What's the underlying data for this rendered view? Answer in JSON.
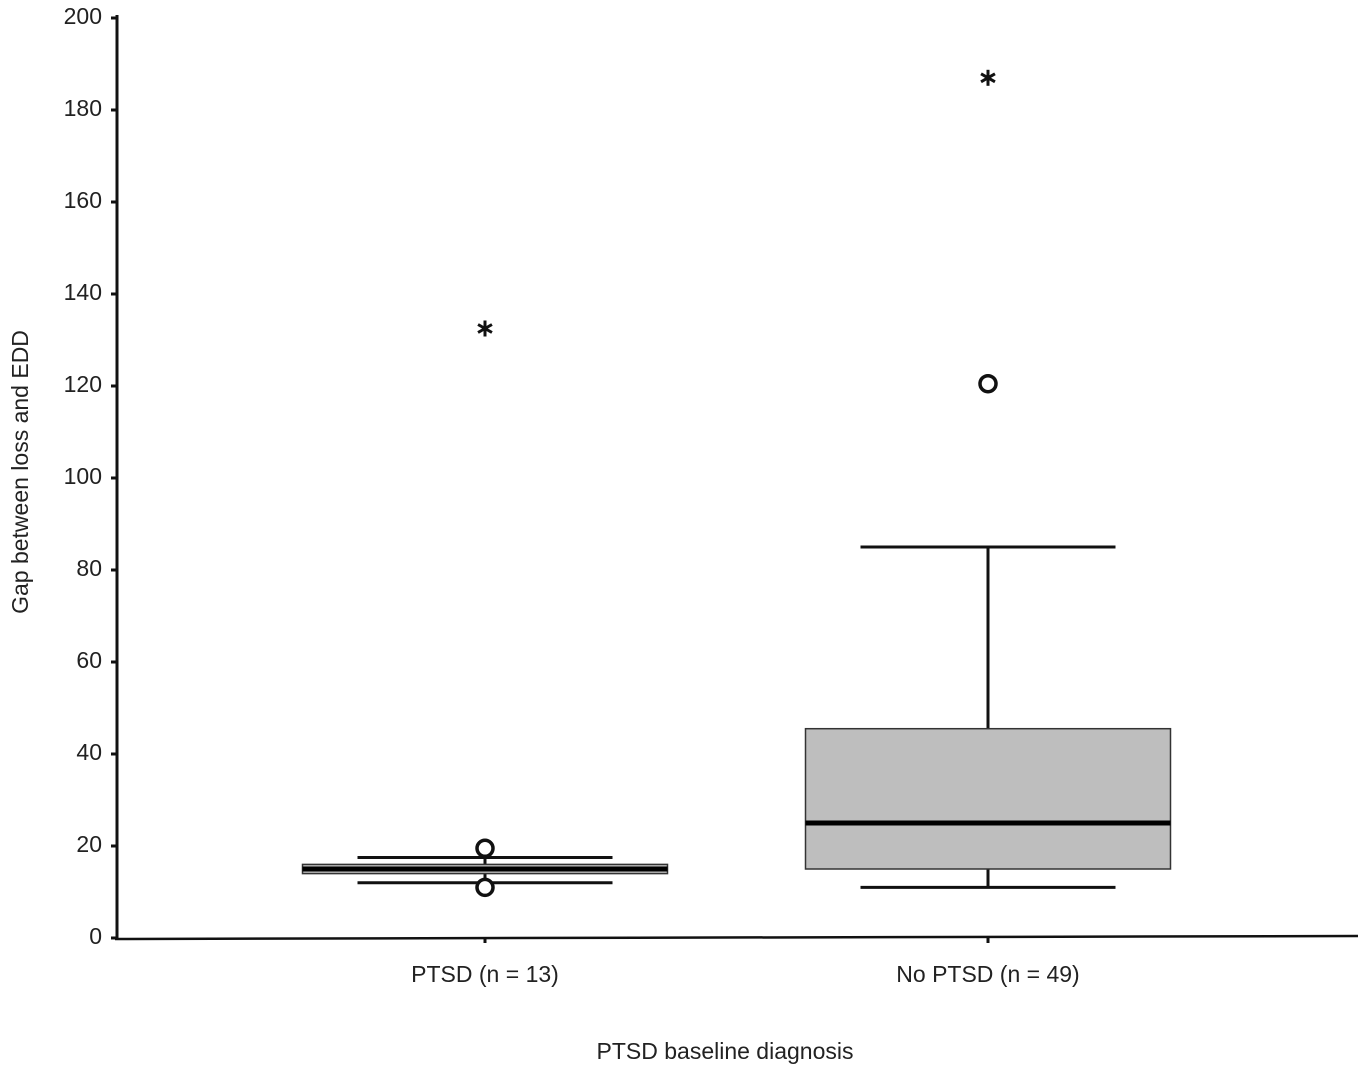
{
  "chart_data": {
    "type": "box",
    "y_label": "Gap between loss and EDD",
    "x_label": "PTSD baseline diagnosis",
    "categories": [
      "PTSD (n = 13)",
      "No PTSD (n = 49)"
    ],
    "boxes": [
      {
        "whislo": 12,
        "q1": 14,
        "med": 15,
        "q3": 16,
        "whishi": 17.5,
        "outliers": [
          19.5,
          11
        ],
        "extremes": [
          132.5
        ]
      },
      {
        "whislo": 11,
        "q1": 15,
        "med": 25,
        "q3": 45.5,
        "whishi": 85,
        "outliers": [
          120.5
        ],
        "extremes": [
          187
        ]
      }
    ],
    "color": "#bebebe",
    "ylim": [
      0,
      200
    ],
    "yticks": [
      0,
      20,
      40,
      60,
      80,
      100,
      120,
      140,
      160,
      180,
      200
    ]
  }
}
